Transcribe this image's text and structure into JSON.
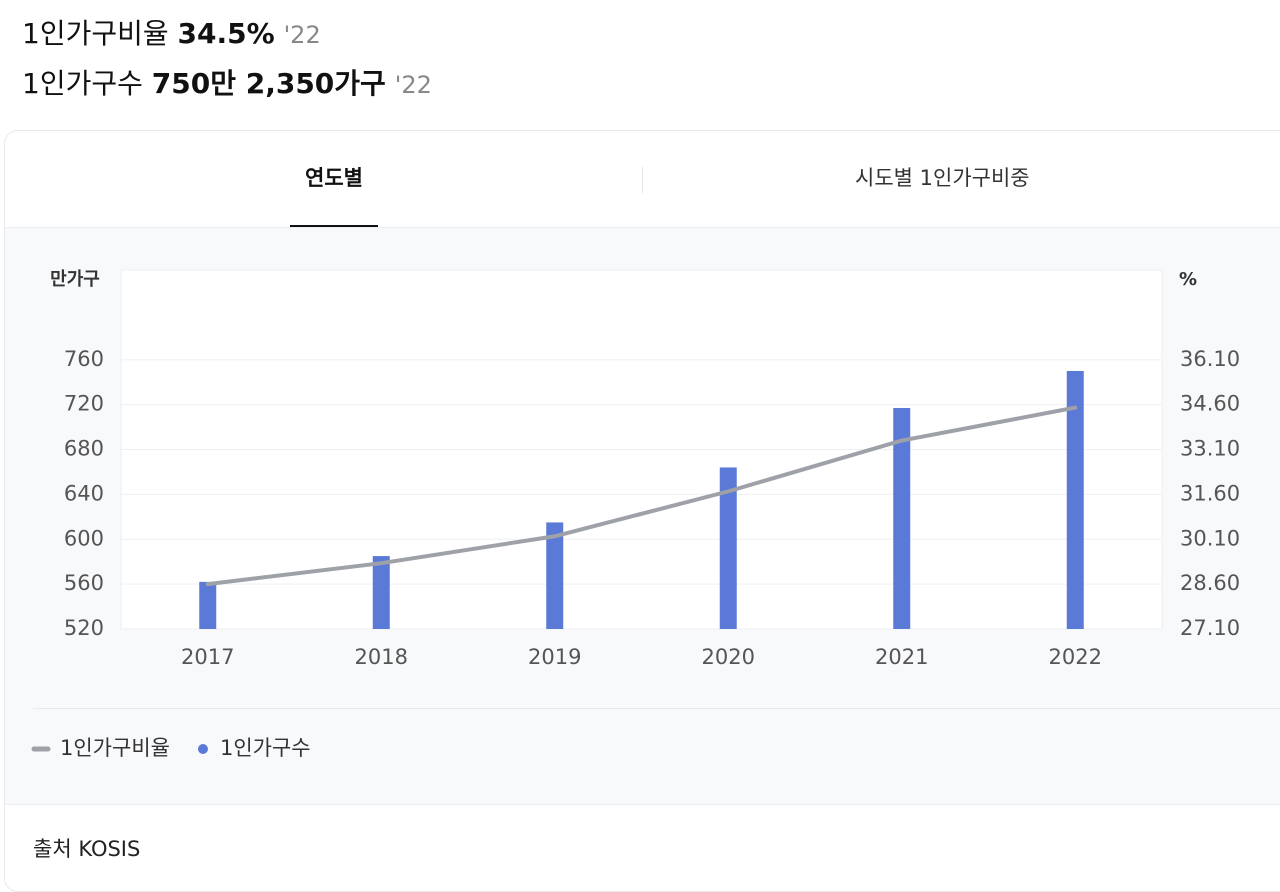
{
  "header": {
    "line1": {
      "label": "1인가구비율",
      "value": "34.5%",
      "year": "'22"
    },
    "line2": {
      "label": "1인가구수",
      "value": "750만 2,350가구",
      "year": "'22"
    }
  },
  "tabs": [
    "연도별",
    "시도별 1인가구비중"
  ],
  "chart_data": {
    "type": "combo",
    "categories": [
      "2017",
      "2018",
      "2019",
      "2020",
      "2021",
      "2022"
    ],
    "y_label": "만가구",
    "y2_label": "%",
    "ylim": [
      520,
      840
    ],
    "yticks": [
      520,
      560,
      600,
      640,
      680,
      720,
      760
    ],
    "y2lim": [
      27.1,
      39.1
    ],
    "y2ticks": [
      {
        "value": 27.1,
        "label": "27.10"
      },
      {
        "value": 28.6,
        "label": "28.60"
      },
      {
        "value": 30.1,
        "label": "30.10"
      },
      {
        "value": 31.6,
        "label": "31.60"
      },
      {
        "value": 33.1,
        "label": "33.10"
      },
      {
        "value": 34.6,
        "label": "34.60"
      },
      {
        "value": 36.1,
        "label": "36.10"
      }
    ],
    "grid": true,
    "series": [
      {
        "name": "1인가구비율",
        "type": "line",
        "axis": "y2",
        "color": "#9ea1a8",
        "values": [
          28.6,
          29.3,
          30.2,
          31.7,
          33.4,
          34.5
        ]
      },
      {
        "name": "1인가구수",
        "type": "bar",
        "color": "#5b79d6",
        "values": [
          562,
          585,
          615,
          664,
          717,
          750
        ]
      }
    ]
  },
  "source": "출처 KOSIS"
}
